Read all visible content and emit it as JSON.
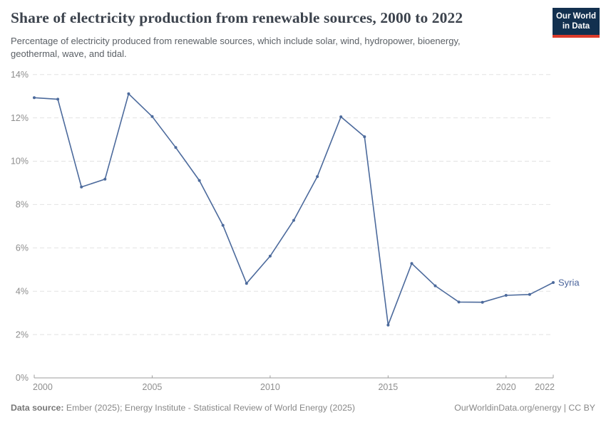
{
  "header": {
    "title": "Share of electricity production from renewable sources, 2000 to 2022",
    "subtitle": "Percentage of electricity produced from renewable sources, which include solar, wind, hydropower, bioenergy, geothermal, wave, and tidal.",
    "logo": {
      "line1": "Our World",
      "line2": "in Data"
    }
  },
  "footer": {
    "source_label": "Data source:",
    "source_text": " Ember (2025); Energy Institute - Statistical Review of World Energy (2025)",
    "rights": "OurWorldinData.org/energy | CC BY"
  },
  "colors": {
    "line": "#4c6a9c",
    "series_label": "#4a649b",
    "gridline": "#e2e2e2",
    "axis": "#9e9e9e",
    "tick_label": "#8e8e8e",
    "logo_bg": "#12304f",
    "logo_stripe": "#dc3b2b"
  },
  "chart_data": {
    "type": "line",
    "title": "Share of electricity production from renewable sources, 2000 to 2022",
    "xlabel": "",
    "ylabel": "",
    "xlim": [
      2000,
      2022
    ],
    "ylim": [
      0,
      14
    ],
    "x_ticks": [
      2000,
      2005,
      2010,
      2015,
      2020,
      2022
    ],
    "y_ticks": [
      0,
      2,
      4,
      6,
      8,
      10,
      12,
      14
    ],
    "y_tick_suffix": "%",
    "grid": "horizontal-dashed",
    "legend_position": "end-of-line-label",
    "series": [
      {
        "name": "Syria",
        "x": [
          2000,
          2001,
          2002,
          2003,
          2004,
          2005,
          2006,
          2007,
          2008,
          2009,
          2010,
          2011,
          2012,
          2013,
          2014,
          2015,
          2016,
          2017,
          2018,
          2019,
          2020,
          2021,
          2022
        ],
        "values": [
          12.93,
          12.86,
          8.81,
          9.17,
          13.11,
          12.06,
          10.63,
          9.11,
          7.04,
          4.36,
          5.62,
          7.27,
          9.29,
          12.05,
          11.13,
          2.44,
          5.28,
          4.25,
          3.5,
          3.49,
          3.81,
          3.85,
          4.4
        ]
      }
    ]
  }
}
